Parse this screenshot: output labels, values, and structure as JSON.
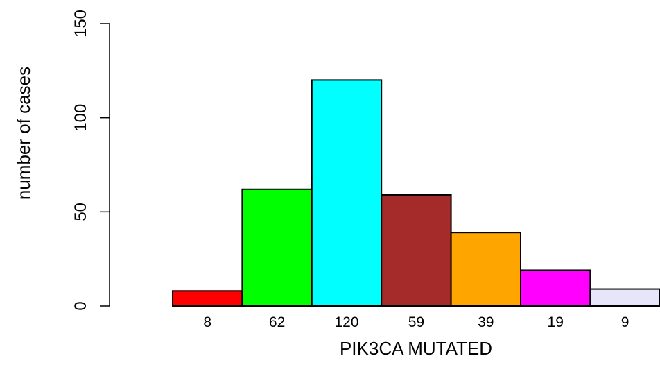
{
  "chart_data": {
    "type": "bar",
    "title": "",
    "xlabel": "PIK3CA MUTATED",
    "ylabel": "number of cases",
    "ylim": [
      0,
      150
    ],
    "yticks": [
      0,
      50,
      100,
      150
    ],
    "grid": false,
    "legend": "none",
    "categories": [
      "8",
      "62",
      "120",
      "59",
      "39",
      "19",
      "9"
    ],
    "values": [
      8,
      62,
      120,
      59,
      39,
      19,
      9
    ],
    "colors": [
      "#ff0000",
      "#00ff00",
      "#00ffff",
      "#a52a2a",
      "#ffa500",
      "#ff00ff",
      "#e6e6fa"
    ]
  }
}
